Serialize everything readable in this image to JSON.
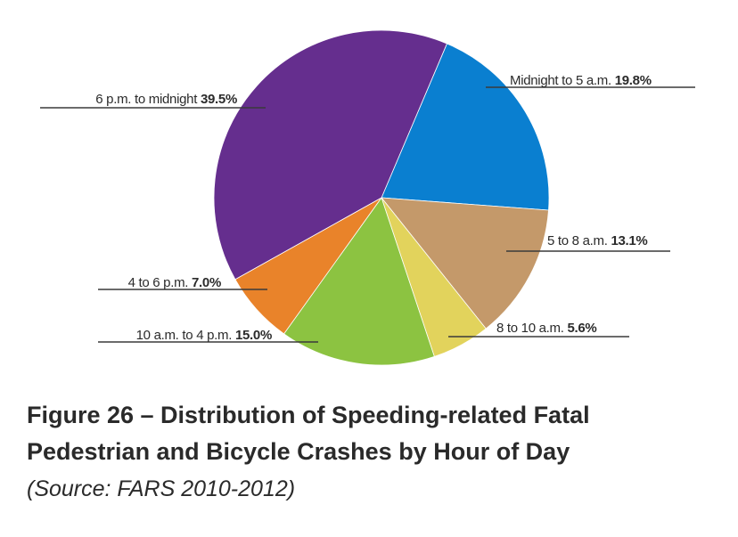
{
  "chart_data": {
    "type": "pie",
    "title": "",
    "slices": [
      {
        "label": "Midnight to 5 a.m.",
        "value": 19.8,
        "display": "19.8%",
        "color": "#0a7fd0"
      },
      {
        "label": "5 to 8 a.m.",
        "value": 13.1,
        "display": "13.1%",
        "color": "#c4996a"
      },
      {
        "label": "8 to 10 a.m.",
        "value": 5.6,
        "display": "5.6%",
        "color": "#e2d35c"
      },
      {
        "label": "10 a.m. to 4 p.m.",
        "value": 15.0,
        "display": "15.0%",
        "color": "#8cc341"
      },
      {
        "label": "4 to 6 p.m.",
        "value": 7.0,
        "display": "7.0%",
        "color": "#e9832a"
      },
      {
        "label": "6 p.m. to midnight",
        "value": 39.5,
        "display": "39.5%",
        "color": "#652e8e"
      }
    ],
    "start_angle_deg": 23,
    "direction": "clockwise"
  },
  "caption": {
    "line1": "Figure 26 – Distribution of Speeding-related Fatal",
    "line2": "Pedestrian and Bicycle Crashes by Hour of Day",
    "source": "(Source: FARS 2010-2012)"
  }
}
